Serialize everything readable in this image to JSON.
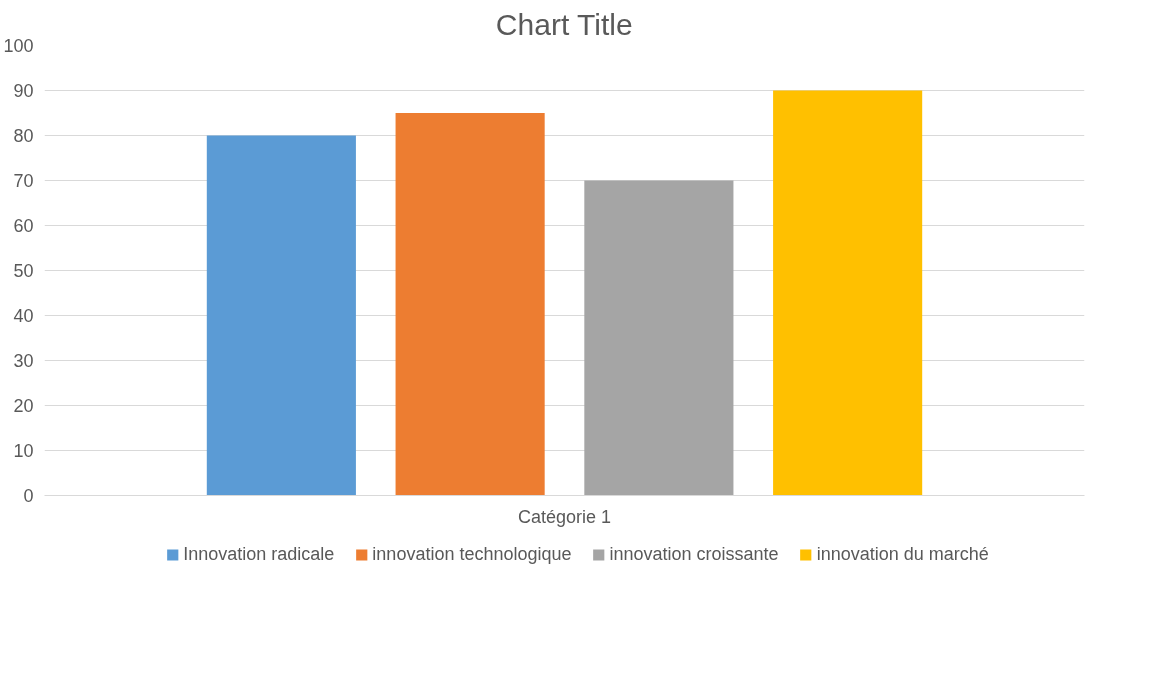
{
  "chart_data": {
    "type": "bar",
    "title": "Chart Title",
    "categories": [
      "Catégorie 1"
    ],
    "series": [
      {
        "name": "Innovation radicale",
        "color": "#5b9bd5",
        "values": [
          80
        ]
      },
      {
        "name": "innovation technologique",
        "color": "#ed7d31",
        "values": [
          85
        ]
      },
      {
        "name": "innovation croissante",
        "color": "#a5a5a5",
        "values": [
          70
        ]
      },
      {
        "name": "innovation du marché",
        "color": "#ffc000",
        "values": [
          90
        ]
      }
    ],
    "ylim": [
      0,
      100
    ],
    "yticks": [
      0,
      10,
      20,
      30,
      40,
      50,
      60,
      70,
      80,
      90,
      100
    ],
    "grid": "y",
    "legend": "bottom"
  }
}
